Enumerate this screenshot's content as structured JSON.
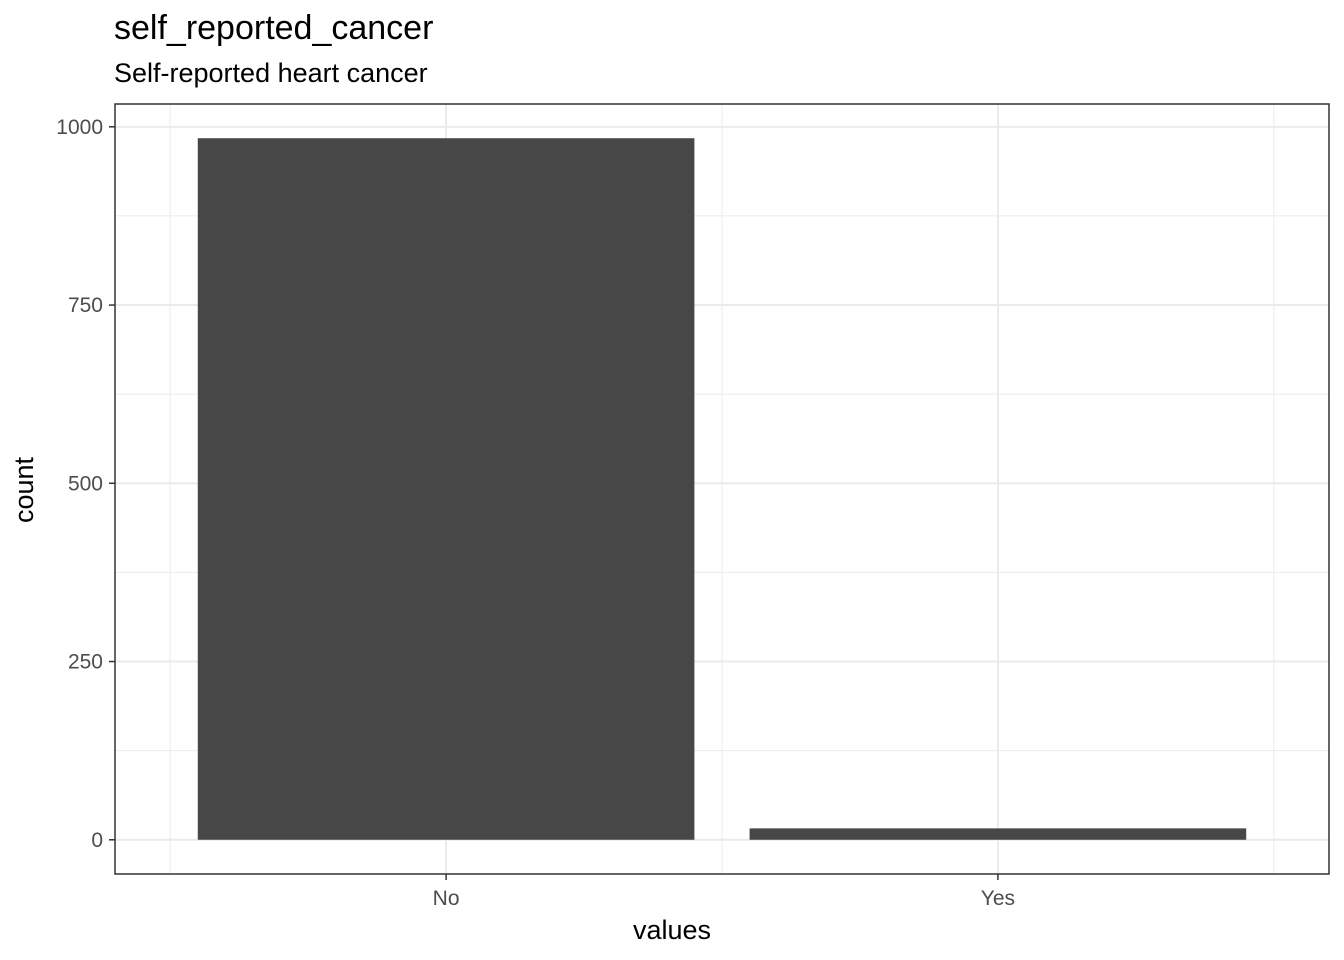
{
  "chart_data": {
    "type": "bar",
    "title": "self_reported_cancer",
    "subtitle": "Self-reported heart cancer",
    "xlabel": "values",
    "ylabel": "count",
    "categories": [
      "No",
      "Yes"
    ],
    "values": [
      984,
      16
    ],
    "ylim": [
      -48,
      1032
    ],
    "yticks": [
      0,
      250,
      500,
      750,
      1000
    ],
    "grid": true,
    "bar_color": "#474747",
    "grid_major_color": "#ebebeb",
    "panel_border_color": "#333333"
  }
}
